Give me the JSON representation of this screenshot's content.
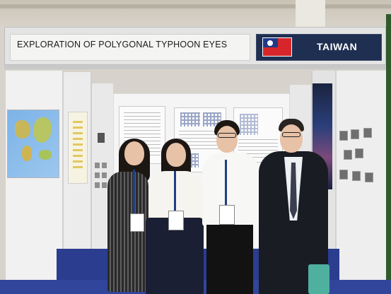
{
  "banner": {
    "title": "EXPLORATION OF POLYGONAL TYPHOON EYES",
    "country": "TAIWAN"
  },
  "colors": {
    "banner_country_bg": "#1f2f52",
    "floor": "#2b3d8f",
    "flag_red": "#d6262b",
    "flag_blue": "#1f3a8a"
  },
  "scene": {
    "people_count": 4
  }
}
